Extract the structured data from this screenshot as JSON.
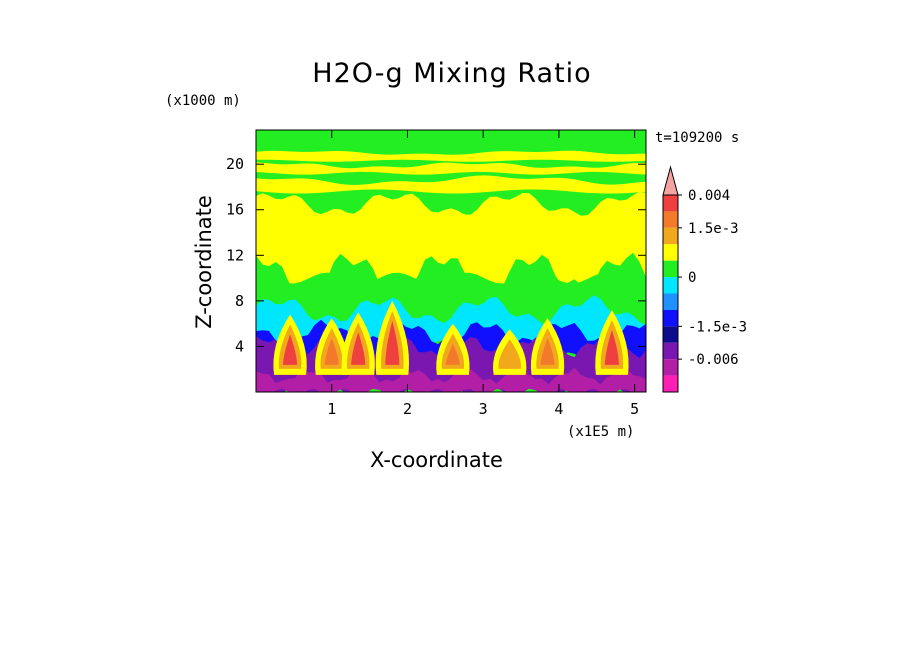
{
  "chart_data": {
    "type": "heatmap",
    "title": "H2O-g Mixing Ratio",
    "xlabel": "X-coordinate",
    "ylabel": "Z-coordinate",
    "x_unit": "(x1E5 m)",
    "y_unit": "(x1000 m)",
    "timestamp": "t=109200 s",
    "xlim": [
      0,
      5.15
    ],
    "ylim": [
      0,
      23
    ],
    "x_ticks": [
      1,
      2,
      3,
      4,
      5
    ],
    "y_ticks": [
      4,
      8,
      12,
      16,
      20
    ],
    "colorbar": {
      "levels": [
        {
          "value": 0.004,
          "color": "#f4a3a3"
        },
        {
          "value": 0.0035,
          "color": "#ef4040"
        },
        {
          "value": 0.0025,
          "color": "#f27a2a"
        },
        {
          "value": 0.0015,
          "color": "#f2a81c"
        },
        {
          "value": 0.001,
          "color": "#ffff00"
        },
        {
          "value": 0.0005,
          "color": "#22ee22"
        },
        {
          "value": 0,
          "color": "#00e6ff"
        },
        {
          "value": -0.0005,
          "color": "#1e90ff"
        },
        {
          "value": -0.001,
          "color": "#1010ff"
        },
        {
          "value": -0.0015,
          "color": "#0c0c8c"
        },
        {
          "value": -0.003,
          "color": "#7a17b0"
        },
        {
          "value": -0.005,
          "color": "#b21fa6"
        },
        {
          "value": -0.008,
          "color": "#ff1fb4"
        }
      ],
      "tick_labels": [
        {
          "label": "0.004",
          "value": 0.004
        },
        {
          "label": "1.5e-3",
          "value": 0.0015
        },
        {
          "label": "0",
          "value": 0
        },
        {
          "label": "-1.5e-3",
          "value": -0.0015
        },
        {
          "label": "-0.006",
          "value": -0.006
        }
      ]
    },
    "field_description_layers": [
      {
        "name": "upper-green",
        "z_range": [
          20,
          23
        ],
        "level": 0.0005
      },
      {
        "name": "upper-yellow-bands",
        "z_range": [
          17,
          21
        ],
        "level": 0.001
      },
      {
        "name": "mid-yellow",
        "z_range": [
          10,
          16.5
        ],
        "level": 0.001
      },
      {
        "name": "green-transition",
        "z_range": [
          7,
          10
        ],
        "level": 0.0005
      },
      {
        "name": "cyan",
        "z_range": [
          5,
          8
        ],
        "level": 0
      },
      {
        "name": "low-purple",
        "z_range": [
          0,
          4
        ],
        "level": -0.003
      }
    ],
    "plumes": [
      {
        "x": 0.45,
        "z_top": 6.8,
        "peak": 0.0035
      },
      {
        "x": 1.0,
        "z_top": 6.5,
        "peak": 0.0025
      },
      {
        "x": 1.35,
        "z_top": 7.0,
        "peak": 0.0035
      },
      {
        "x": 1.8,
        "z_top": 8.0,
        "peak": 0.0035
      },
      {
        "x": 2.6,
        "z_top": 6.0,
        "peak": 0.0025
      },
      {
        "x": 3.35,
        "z_top": 5.5,
        "peak": 0.0015
      },
      {
        "x": 3.85,
        "z_top": 6.5,
        "peak": 0.0025
      },
      {
        "x": 4.7,
        "z_top": 7.2,
        "peak": 0.0035
      }
    ]
  }
}
